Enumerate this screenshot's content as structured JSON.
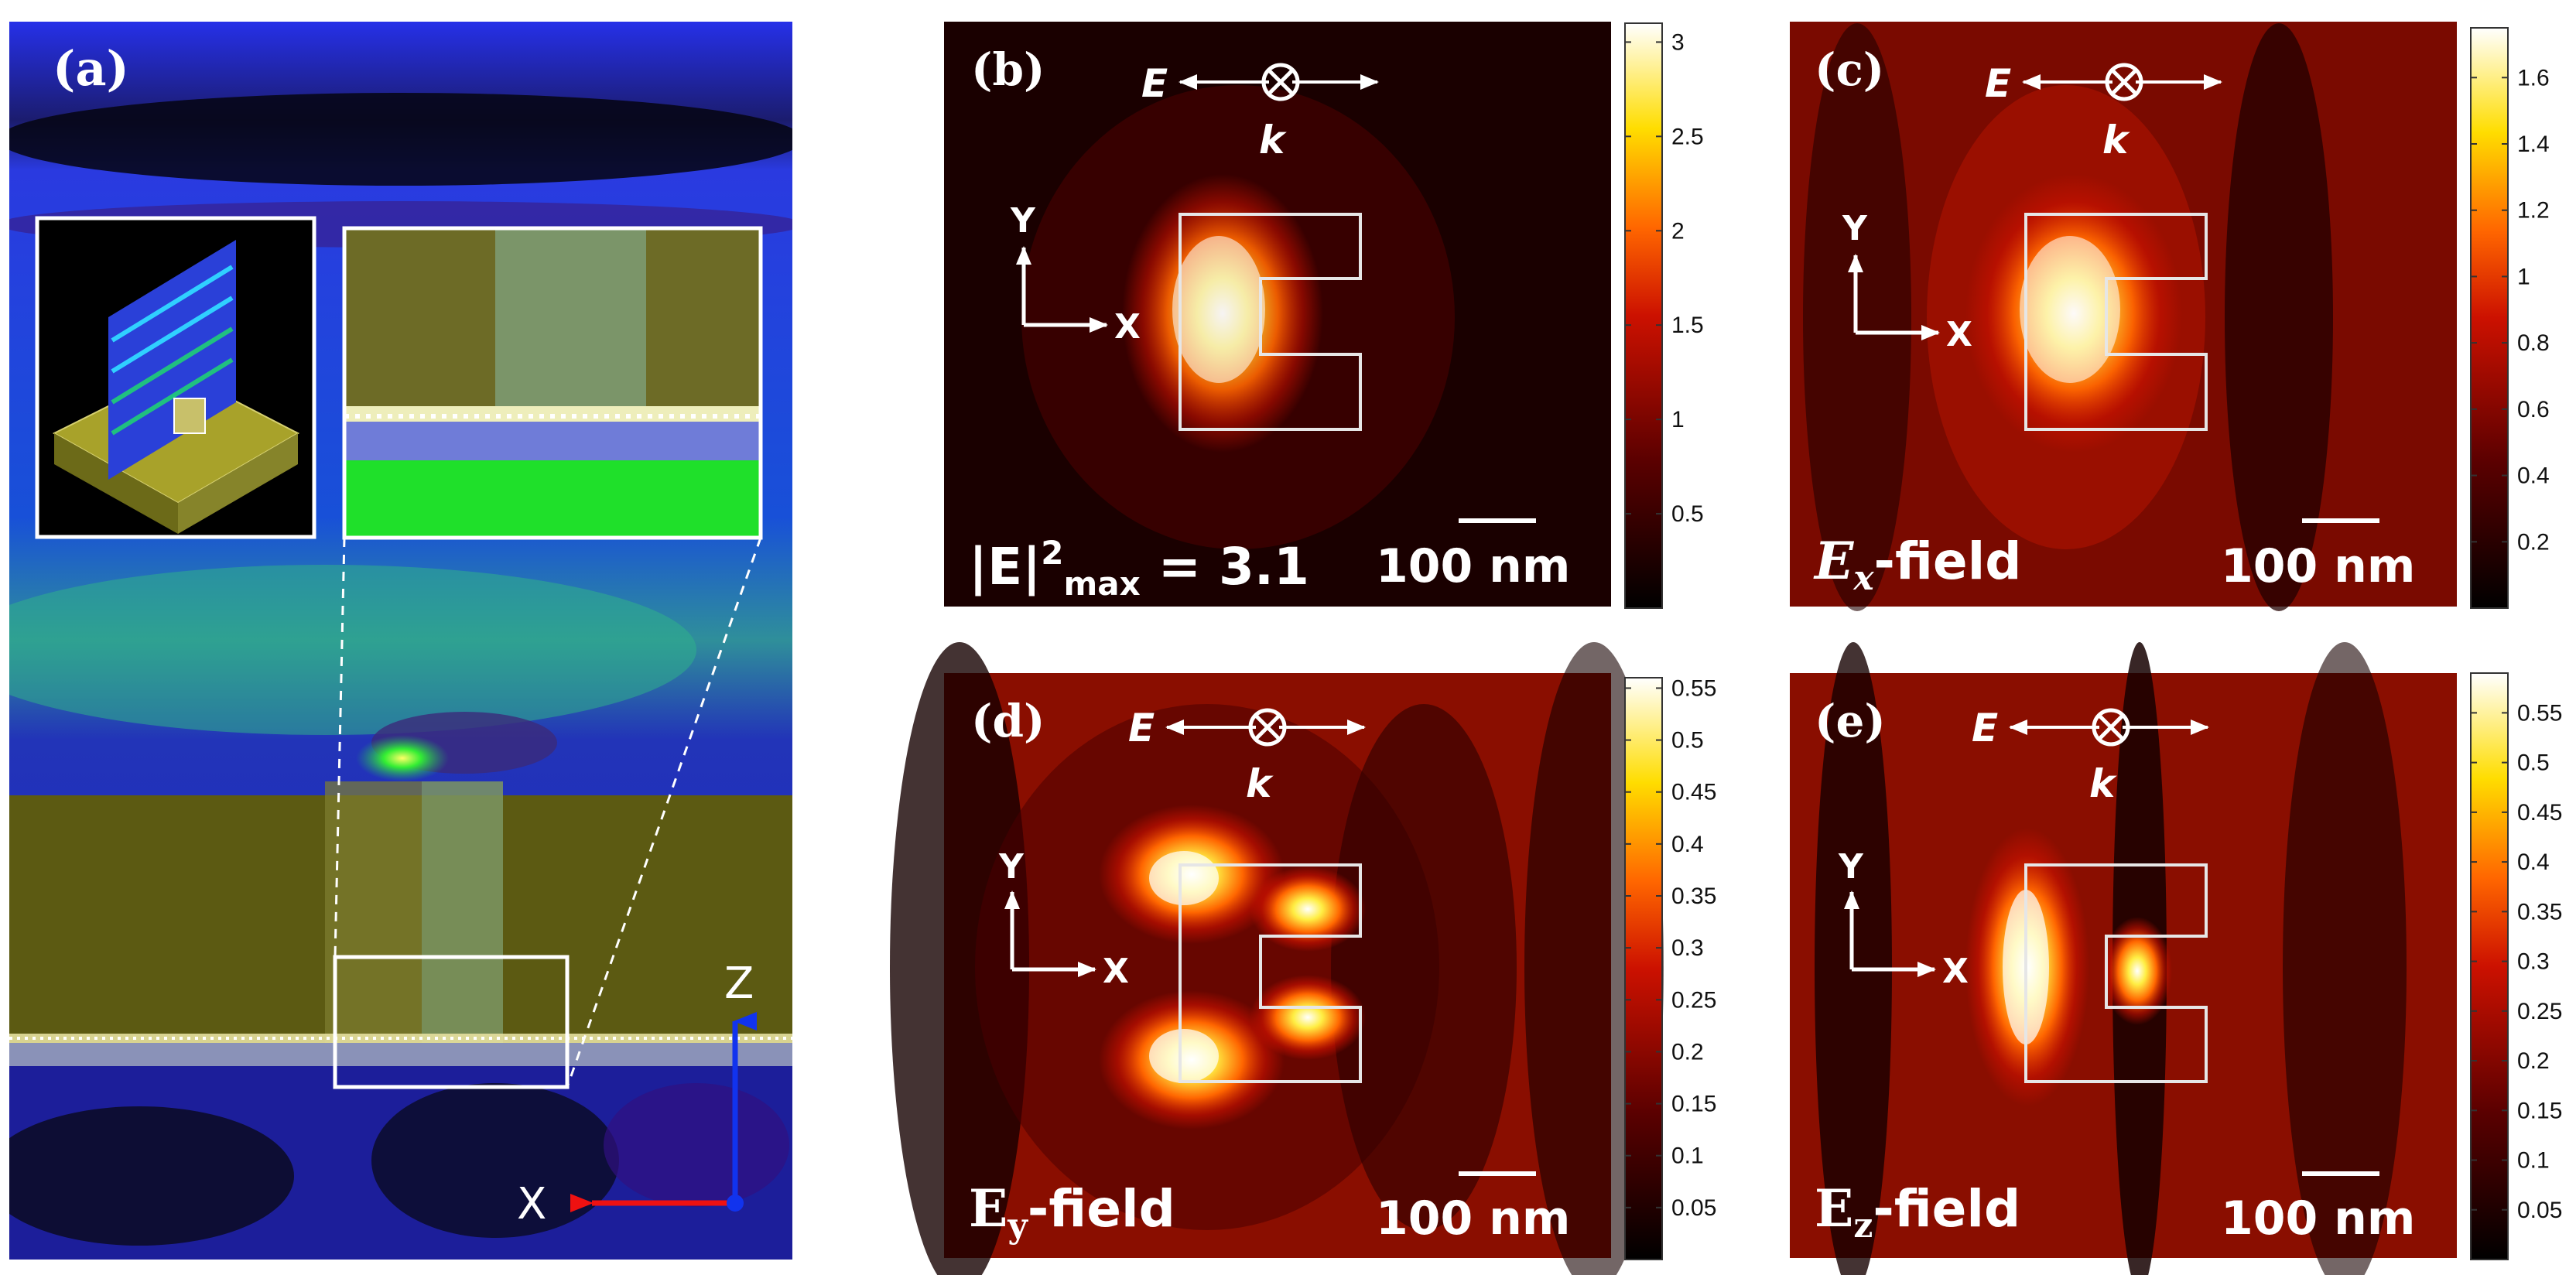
{
  "figure": {
    "panel_a": {
      "label": "(a)",
      "z_axis": "Z",
      "x_axis": "X"
    },
    "panels": [
      {
        "id": "b",
        "label": "(b)",
        "E_sym": "E",
        "k_sym": "k",
        "x_axis": "X",
        "y_axis": "Y",
        "field_label": "|E|",
        "field_sup": "2",
        "field_sub": "max",
        "field_suffix": " = 3.1",
        "scale_bar": "100 nm",
        "colorbar": {
          "min": 0,
          "max": 3.1,
          "ticks": [
            "3",
            "2.5",
            "2",
            "1.5",
            "1",
            "0.5"
          ],
          "tick_values": [
            3,
            2.5,
            2,
            1.5,
            1,
            0.5
          ]
        }
      },
      {
        "id": "c",
        "label": "(c)",
        "E_sym": "E",
        "k_sym": "k",
        "x_axis": "X",
        "y_axis": "Y",
        "field_main": "E",
        "field_sub": "x",
        "field_suffix": "-field",
        "scale_bar": "100 nm",
        "colorbar": {
          "min": 0,
          "max": 1.75,
          "ticks": [
            "1.6",
            "1.4",
            "1.2",
            "1",
            "0.8",
            "0.6",
            "0.4",
            "0.2"
          ],
          "tick_values": [
            1.6,
            1.4,
            1.2,
            1,
            0.8,
            0.6,
            0.4,
            0.2
          ]
        }
      },
      {
        "id": "d",
        "label": "(d)",
        "E_sym": "E",
        "k_sym": "k",
        "x_axis": "X",
        "y_axis": "Y",
        "field_main": "E",
        "field_sub": "y",
        "field_suffix": "-field",
        "scale_bar": "100 nm",
        "colorbar": {
          "min": 0,
          "max": 0.56,
          "ticks": [
            "0.55",
            "0.5",
            "0.45",
            "0.4",
            "0.35",
            "0.3",
            "0.25",
            "0.2",
            "0.15",
            "0.1",
            "0.05"
          ],
          "tick_values": [
            0.55,
            0.5,
            0.45,
            0.4,
            0.35,
            0.3,
            0.25,
            0.2,
            0.15,
            0.1,
            0.05
          ]
        }
      },
      {
        "id": "e",
        "label": "(e)",
        "E_sym": "E",
        "k_sym": "k",
        "x_axis": "X",
        "y_axis": "Y",
        "field_main": "E",
        "field_sub": "z",
        "field_suffix": "-field",
        "scale_bar": "100 nm",
        "colorbar": {
          "min": 0,
          "max": 0.59,
          "ticks": [
            "0.55",
            "0.5",
            "0.45",
            "0.4",
            "0.35",
            "0.3",
            "0.25",
            "0.2",
            "0.15",
            "0.1",
            "0.05"
          ],
          "tick_values": [
            0.55,
            0.5,
            0.45,
            0.4,
            0.35,
            0.3,
            0.25,
            0.2,
            0.15,
            0.1,
            0.05
          ]
        }
      }
    ]
  },
  "colors": {
    "hot_stops": [
      "#000000",
      "#5a0000",
      "#cc1100",
      "#ff6600",
      "#ffdd00",
      "#ffffff"
    ],
    "frame": "#d8d8d8"
  }
}
